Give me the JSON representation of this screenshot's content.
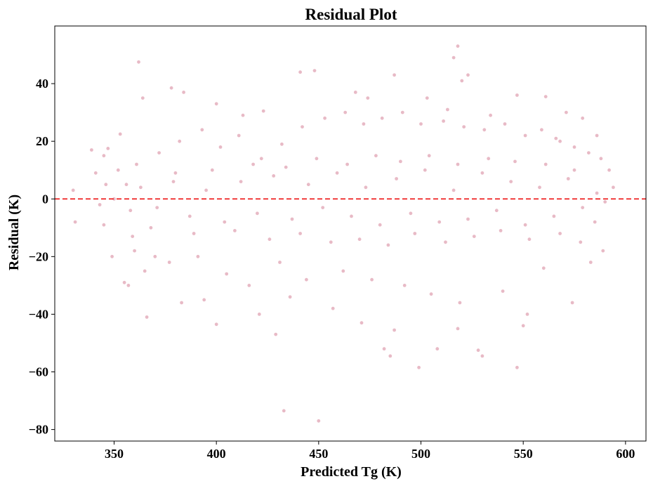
{
  "chart_data": {
    "type": "scatter",
    "title": "Residual Plot",
    "xlabel": "Predicted Tg (K)",
    "ylabel": "Residual (K)",
    "xlim": [
      321,
      610
    ],
    "ylim": [
      -84,
      60
    ],
    "xticks": [
      350,
      400,
      450,
      500,
      550,
      600
    ],
    "yticks": [
      -80,
      -60,
      -40,
      -20,
      0,
      20,
      40
    ],
    "xtick_labels": [
      "350",
      "400",
      "450",
      "500",
      "550",
      "600"
    ],
    "ytick_labels": [
      "−80",
      "−60",
      "−40",
      "−20",
      "0",
      "20",
      "40"
    ],
    "grid": false,
    "reference_line": {
      "y": 0,
      "style": "dashed",
      "color": "#ee2222"
    },
    "marker_color": "#cc6680",
    "marker_opacity": 0.45,
    "points": [
      [
        362,
        47.5
      ],
      [
        364,
        35
      ],
      [
        384,
        37
      ],
      [
        378,
        38.5
      ],
      [
        400,
        33
      ],
      [
        413,
        29
      ],
      [
        423,
        30.5
      ],
      [
        441,
        44
      ],
      [
        448,
        44.5
      ],
      [
        518,
        53
      ],
      [
        516,
        49
      ],
      [
        520,
        41
      ],
      [
        523,
        43
      ],
      [
        487,
        43
      ],
      [
        468,
        37
      ],
      [
        474,
        35
      ],
      [
        503,
        35
      ],
      [
        547,
        36
      ],
      [
        561,
        35.5
      ],
      [
        513,
        31
      ],
      [
        534,
        29
      ],
      [
        330,
        3
      ],
      [
        331,
        -8
      ],
      [
        339,
        17
      ],
      [
        345,
        15
      ],
      [
        347,
        17.5
      ],
      [
        341,
        9
      ],
      [
        353,
        22.5
      ],
      [
        356,
        5
      ],
      [
        355,
        -29
      ],
      [
        357,
        -30
      ],
      [
        360,
        -18
      ],
      [
        366,
        -41
      ],
      [
        365,
        -25
      ],
      [
        370,
        -20
      ],
      [
        383,
        -36
      ],
      [
        394,
        -35
      ],
      [
        400,
        -43.5
      ],
      [
        421,
        -40
      ],
      [
        429,
        -47
      ],
      [
        433,
        -73.5
      ],
      [
        450,
        -77
      ],
      [
        436,
        -34
      ],
      [
        457,
        -38
      ],
      [
        471,
        -43
      ],
      [
        487,
        -45.5
      ],
      [
        482,
        -52
      ],
      [
        485,
        -54.5
      ],
      [
        499,
        -58.5
      ],
      [
        508,
        -52
      ],
      [
        518,
        -45
      ],
      [
        530,
        -54.5
      ],
      [
        528,
        -52.5
      ],
      [
        547,
        -58.5
      ],
      [
        550,
        -44
      ],
      [
        552,
        -40
      ],
      [
        574,
        -36
      ],
      [
        583,
        -22
      ],
      [
        589,
        -18
      ],
      [
        592,
        10
      ],
      [
        594,
        4
      ],
      [
        588,
        14
      ],
      [
        586,
        22
      ],
      [
        579,
        28
      ],
      [
        571,
        30
      ],
      [
        568,
        20
      ],
      [
        590,
        -1
      ],
      [
        585,
        -8
      ],
      [
        578,
        -15
      ],
      [
        560,
        -24
      ],
      [
        540,
        -32
      ],
      [
        519,
        -36
      ],
      [
        505,
        -33
      ],
      [
        492,
        -30
      ],
      [
        476,
        -28
      ],
      [
        462,
        -25
      ],
      [
        444,
        -28
      ],
      [
        431,
        -22
      ],
      [
        416,
        -30
      ],
      [
        405,
        -26
      ],
      [
        391,
        -20
      ],
      [
        377,
        -22
      ],
      [
        368,
        -10
      ],
      [
        359,
        -13
      ],
      [
        349,
        -20
      ],
      [
        343,
        -2
      ],
      [
        346,
        5
      ],
      [
        352,
        10
      ],
      [
        361,
        12
      ],
      [
        372,
        16
      ],
      [
        382,
        20
      ],
      [
        393,
        24
      ],
      [
        402,
        18
      ],
      [
        411,
        22
      ],
      [
        422,
        14
      ],
      [
        432,
        19
      ],
      [
        442,
        25
      ],
      [
        453,
        28
      ],
      [
        463,
        30
      ],
      [
        472,
        26
      ],
      [
        481,
        28
      ],
      [
        491,
        30
      ],
      [
        500,
        26
      ],
      [
        511,
        27
      ],
      [
        521,
        25
      ],
      [
        531,
        24
      ],
      [
        541,
        26
      ],
      [
        551,
        22
      ],
      [
        559,
        24
      ],
      [
        566,
        21
      ],
      [
        575,
        18
      ],
      [
        582,
        16
      ],
      [
        345,
        -9
      ],
      [
        350,
        0
      ],
      [
        358,
        -4
      ],
      [
        363,
        4
      ],
      [
        371,
        -3
      ],
      [
        379,
        6
      ],
      [
        387,
        -6
      ],
      [
        395,
        3
      ],
      [
        404,
        -8
      ],
      [
        412,
        6
      ],
      [
        420,
        -5
      ],
      [
        428,
        8
      ],
      [
        437,
        -7
      ],
      [
        445,
        5
      ],
      [
        452,
        -3
      ],
      [
        459,
        9
      ],
      [
        466,
        -6
      ],
      [
        473,
        4
      ],
      [
        480,
        -9
      ],
      [
        488,
        7
      ],
      [
        495,
        -5
      ],
      [
        502,
        10
      ],
      [
        509,
        -8
      ],
      [
        516,
        3
      ],
      [
        523,
        -7
      ],
      [
        530,
        9
      ],
      [
        537,
        -4
      ],
      [
        544,
        6
      ],
      [
        551,
        -9
      ],
      [
        558,
        4
      ],
      [
        565,
        -6
      ],
      [
        572,
        7
      ],
      [
        579,
        -3
      ],
      [
        586,
        2
      ],
      [
        464,
        12
      ],
      [
        470,
        -14
      ],
      [
        478,
        15
      ],
      [
        484,
        -16
      ],
      [
        490,
        13
      ],
      [
        497,
        -12
      ],
      [
        504,
        15
      ],
      [
        512,
        -15
      ],
      [
        518,
        12
      ],
      [
        526,
        -13
      ],
      [
        533,
        14
      ],
      [
        539,
        -11
      ],
      [
        546,
        13
      ],
      [
        553,
        -14
      ],
      [
        561,
        12
      ],
      [
        568,
        -12
      ],
      [
        575,
        10
      ],
      [
        456,
        -15
      ],
      [
        449,
        14
      ],
      [
        441,
        -12
      ],
      [
        434,
        11
      ],
      [
        426,
        -14
      ],
      [
        418,
        12
      ],
      [
        409,
        -11
      ],
      [
        398,
        10
      ],
      [
        389,
        -12
      ],
      [
        380,
        9
      ]
    ]
  }
}
